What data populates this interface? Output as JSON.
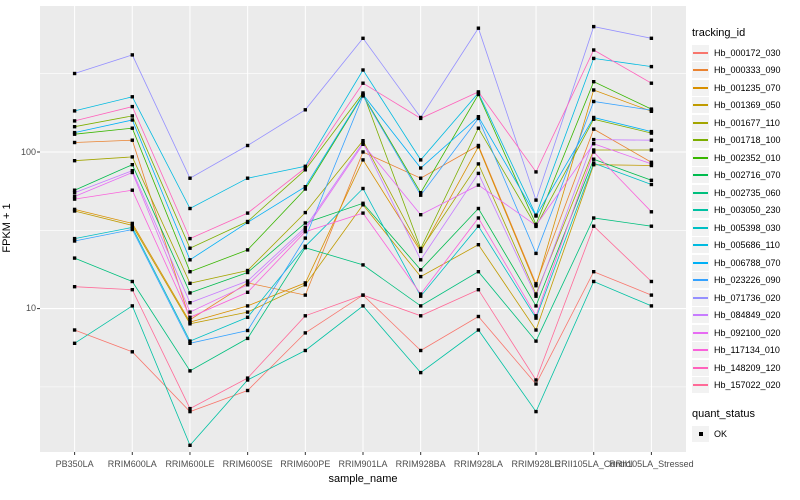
{
  "style": {
    "panel_bg": "#EBEBEB",
    "grid_color": "#FFFFFF",
    "point_color": "#000000",
    "tick_label_color": "#4D4D4D",
    "legend_key_bg": "#F2F2F2"
  },
  "chart_data": {
    "type": "line",
    "title": "",
    "xlabel": "sample_name",
    "ylabel": "FPKM + 1",
    "y_scale": "log10",
    "y_tick_labels": [
      "100",
      "10"
    ],
    "y_tick_values": [
      100,
      10
    ],
    "y_minor_values": [
      3.1623,
      31.623,
      316.23
    ],
    "ylim": [
      1.2,
      870
    ],
    "grid": "on",
    "legend_position": "right",
    "legend_title": "tracking_id",
    "point_legend": {
      "title": "quant_status",
      "label": "OK"
    },
    "x_categories": [
      "PB350LA",
      "RRIM600LA",
      "RRIM600LE",
      "RRIM600SE",
      "RRIM600PE",
      "RRIM901LA",
      "RRIM928BA",
      "RRIM928LA",
      "RRIM928LE",
      "RRII105LA_Control",
      "RRII105LA_Stressed"
    ],
    "series": [
      {
        "name": "Hb_000172_030",
        "color": "#F8766D",
        "values": [
          7.3,
          5.3,
          2.2,
          3.0,
          7.0,
          12.2,
          5.4,
          8.9,
          3.3,
          17.2,
          12.2
        ]
      },
      {
        "name": "Hb_000333_090",
        "color": "#EA8331",
        "values": [
          115,
          119,
          8.5,
          14.6,
          12.2,
          100,
          68,
          110,
          14.4,
          140,
          86
        ]
      },
      {
        "name": "Hb_001235_070",
        "color": "#D89000",
        "values": [
          43,
          35,
          8.2,
          10.4,
          14.6,
          89,
          23.2,
          108,
          14.0,
          249,
          182
        ]
      },
      {
        "name": "Hb_001369_050",
        "color": "#C09B00",
        "values": [
          42,
          34,
          8.0,
          9.5,
          14.2,
          46,
          16.0,
          25.6,
          7.3,
          83,
          82
        ]
      },
      {
        "name": "Hb_001677_110",
        "color": "#A3A500",
        "values": [
          88,
          93,
          14.5,
          17.5,
          41,
          118,
          23.7,
          84,
          12.4,
          103,
          103
        ]
      },
      {
        "name": "Hb_001718_100",
        "color": "#7CAE00",
        "values": [
          145,
          170,
          24.3,
          36,
          77,
          238,
          24.2,
          142,
          33.5,
          162,
          132
        ]
      },
      {
        "name": "Hb_002352_010",
        "color": "#39B600",
        "values": [
          130,
          142,
          17.2,
          23.7,
          58,
          231,
          55,
          233,
          34.5,
          281,
          188
        ]
      },
      {
        "name": "Hb_002716_070",
        "color": "#00BB4E",
        "values": [
          57,
          83,
          12.6,
          17.0,
          35.2,
          47,
          17.7,
          43.6,
          10.4,
          90,
          66
        ]
      },
      {
        "name": "Hb_002735_060",
        "color": "#00BF7D",
        "values": [
          21,
          14.9,
          4.0,
          6.45,
          24.5,
          19,
          10.4,
          17.2,
          6.2,
          37.9,
          33.6
        ]
      },
      {
        "name": "Hb_003050_230",
        "color": "#00C1A3",
        "values": [
          6.0,
          10.4,
          1.34,
          3.5,
          5.4,
          10.4,
          3.9,
          7.3,
          2.2,
          14.9,
          10.4
        ]
      },
      {
        "name": "Hb_005398_030",
        "color": "#00BFC4",
        "values": [
          28,
          33,
          6.2,
          8.8,
          25,
          58.5,
          12.0,
          33.6,
          8.7,
          85,
          62
        ]
      },
      {
        "name": "Hb_005686_110",
        "color": "#00BAE0",
        "values": [
          183,
          225,
          43.6,
          68,
          81,
          334,
          89,
          238,
          39.5,
          396,
          351
        ]
      },
      {
        "name": "Hb_006788_070",
        "color": "#00B0F6",
        "values": [
          133,
          160,
          20.5,
          35.5,
          60,
          233,
          79,
          168,
          39.0,
          166,
          135
        ]
      },
      {
        "name": "Hb_023226_090",
        "color": "#35A2FF",
        "values": [
          27,
          32,
          6.0,
          7.25,
          28.2,
          228,
          53,
          164,
          22.5,
          210,
          185
        ]
      },
      {
        "name": "Hb_071736_020",
        "color": "#9590FF",
        "values": [
          317,
          417,
          68,
          110,
          186,
          532,
          166,
          617,
          49.3,
          632,
          532
        ]
      },
      {
        "name": "Hb_084849_020",
        "color": "#C77CFF",
        "values": [
          55,
          76,
          10.9,
          15.0,
          33,
          115,
          20.5,
          73,
          12.0,
          120,
          119
        ]
      },
      {
        "name": "Hb_092100_020",
        "color": "#E76BF3",
        "values": [
          52,
          74,
          9.5,
          14.2,
          32,
          112,
          39.8,
          61.5,
          34.0,
          113,
          84
        ]
      },
      {
        "name": "Hb_117134_010",
        "color": "#FA62DB",
        "values": [
          50,
          57,
          8.8,
          12.7,
          31,
          40.7,
          12.4,
          37.9,
          9.0,
          100,
          41.5
        ]
      },
      {
        "name": "Hb_148209_120",
        "color": "#FF62BC",
        "values": [
          158,
          195,
          28,
          40.7,
          79,
          275,
          164,
          242,
          74.6,
          448,
          275
        ]
      },
      {
        "name": "Hb_157022_020",
        "color": "#FF6A98",
        "values": [
          13.8,
          13.2,
          2.3,
          3.6,
          9.0,
          12.2,
          9.0,
          13.2,
          3.5,
          33.6,
          14.9
        ]
      }
    ]
  }
}
